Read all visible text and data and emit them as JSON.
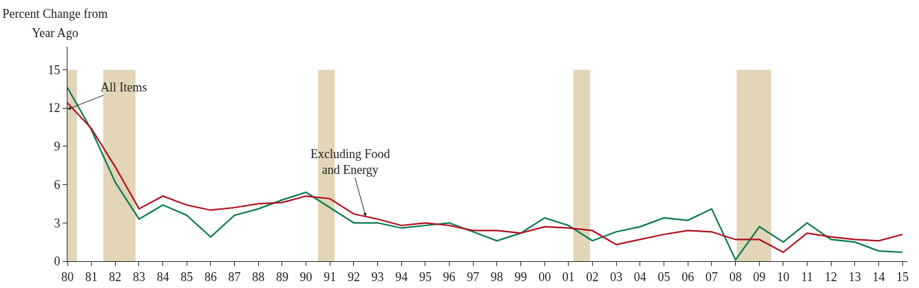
{
  "chart_data": {
    "type": "line",
    "ylabel": "Percent Change from Year Ago",
    "x": [
      1980,
      1981,
      1982,
      1983,
      1984,
      1985,
      1986,
      1987,
      1988,
      1989,
      1990,
      1991,
      1992,
      1993,
      1994,
      1995,
      1996,
      1997,
      1998,
      1999,
      2000,
      2001,
      2002,
      2003,
      2004,
      2005,
      2006,
      2007,
      2008,
      2009,
      2010,
      2011,
      2012,
      2013,
      2014,
      2015
    ],
    "series": [
      {
        "color": "#0a7a50",
        "values": [
          13.6,
          10.3,
          6.2,
          3.3,
          4.4,
          3.6,
          1.9,
          3.6,
          4.1,
          4.8,
          5.4,
          4.2,
          3.0,
          3.0,
          2.6,
          2.8,
          3.0,
          2.3,
          1.6,
          2.2,
          3.4,
          2.8,
          1.6,
          2.3,
          2.7,
          3.4,
          3.2,
          4.1,
          0.1,
          2.7,
          1.5,
          3.0,
          1.7,
          1.5,
          0.8,
          0.7
        ]
      },
      {
        "color": "#b0101e",
        "values": [
          12.4,
          10.4,
          7.4,
          4.1,
          5.1,
          4.4,
          4.0,
          4.2,
          4.5,
          4.6,
          5.1,
          4.9,
          3.7,
          3.3,
          2.8,
          3.0,
          2.8,
          2.4,
          2.4,
          2.2,
          2.7,
          2.6,
          2.4,
          1.3,
          1.7,
          2.1,
          2.4,
          2.3,
          1.7,
          1.7,
          0.7,
          2.2,
          1.9,
          1.7,
          1.6,
          2.1
        ]
      }
    ],
    "xlim": [
      1980,
      2015.2
    ],
    "xticks": [
      {
        "value": 1980,
        "label": "80"
      },
      {
        "value": 1981,
        "label": "81"
      },
      {
        "value": 1982,
        "label": "82"
      },
      {
        "value": 1983,
        "label": "83"
      },
      {
        "value": 1984,
        "label": "84"
      },
      {
        "value": 1985,
        "label": "85"
      },
      {
        "value": 1986,
        "label": "86"
      },
      {
        "value": 1987,
        "label": "87"
      },
      {
        "value": 1988,
        "label": "88"
      },
      {
        "value": 1989,
        "label": "89"
      },
      {
        "value": 1990,
        "label": "90"
      },
      {
        "value": 1991,
        "label": "91"
      },
      {
        "value": 1992,
        "label": "92"
      },
      {
        "value": 1993,
        "label": "93"
      },
      {
        "value": 1994,
        "label": "94"
      },
      {
        "value": 1995,
        "label": "95"
      },
      {
        "value": 1996,
        "label": "96"
      },
      {
        "value": 1997,
        "label": "97"
      },
      {
        "value": 1998,
        "label": "98"
      },
      {
        "value": 1999,
        "label": "99"
      },
      {
        "value": 2000,
        "label": "00"
      },
      {
        "value": 2001,
        "label": "01"
      },
      {
        "value": 2002,
        "label": "02"
      },
      {
        "value": 2003,
        "label": "03"
      },
      {
        "value": 2004,
        "label": "04"
      },
      {
        "value": 2005,
        "label": "05"
      },
      {
        "value": 2006,
        "label": "06"
      },
      {
        "value": 2007,
        "label": "07"
      },
      {
        "value": 2008,
        "label": "08"
      },
      {
        "value": 2009,
        "label": "09"
      },
      {
        "value": 2010,
        "label": "10"
      },
      {
        "value": 2011,
        "label": "11"
      },
      {
        "value": 2012,
        "label": "12"
      },
      {
        "value": 2013,
        "label": "13"
      },
      {
        "value": 2014,
        "label": "14"
      },
      {
        "value": 2015,
        "label": "15"
      }
    ],
    "ylim": [
      0,
      16.8
    ],
    "yticks": [
      0,
      3,
      6,
      9,
      12,
      15
    ],
    "bands": [
      {
        "axis": "x",
        "from": 1980,
        "to": 1980.4,
        "color": "#e2d5b8"
      },
      {
        "axis": "x",
        "from": 1981.5,
        "to": 1982.85,
        "color": "#e2d5b8"
      },
      {
        "axis": "x",
        "from": 1990.5,
        "to": 1991.2,
        "color": "#e2d5b8"
      },
      {
        "axis": "x",
        "from": 2001.2,
        "to": 2001.9,
        "color": "#e2d5b8"
      },
      {
        "axis": "x",
        "from": 2008.05,
        "to": 2009.5,
        "color": "#e2d5b8"
      }
    ],
    "annotations": [
      {
        "text": "All Items",
        "x": 1980.0,
        "y": 11.9
      },
      {
        "text": "Excluding Food and Energy",
        "x": 1992.5,
        "y": 3.5
      }
    ],
    "grid": false,
    "marker": "none",
    "line_style": "solid"
  }
}
